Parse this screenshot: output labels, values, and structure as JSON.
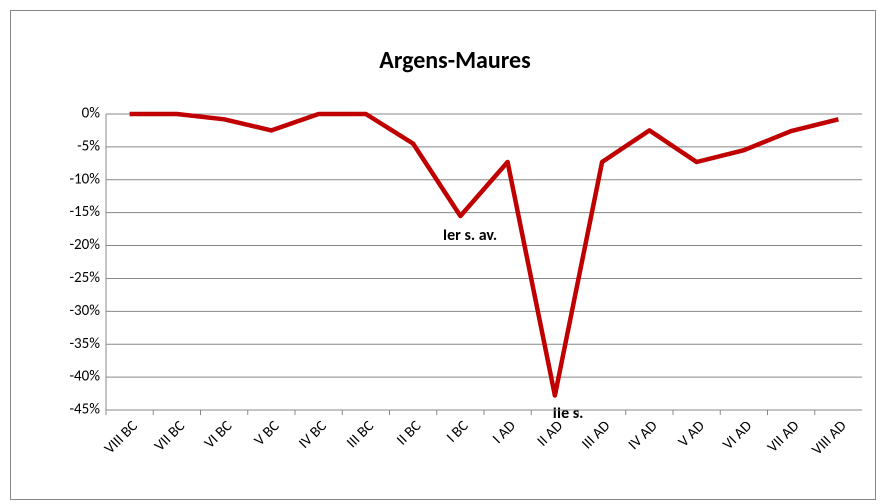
{
  "chart_data": {
    "type": "line",
    "title": "Argens-Maures",
    "categories": [
      "VIII BC",
      "VII BC",
      "VI BC",
      "V BC",
      "IV BC",
      "III BC",
      "II BC",
      "I BC",
      "I AD",
      "II AD",
      "III AD",
      "IV AD",
      "V AD",
      "VI AD",
      "VII AD",
      "VIII AD"
    ],
    "values": [
      0,
      0,
      -0.8,
      -2.5,
      0,
      0,
      -4.5,
      -15.5,
      -7.3,
      -42.8,
      -7.3,
      -2.5,
      -7.3,
      -5.5,
      -2.6,
      -0.8
    ],
    "color": "#c00000",
    "ylim": [
      -45,
      0
    ],
    "yticks": [
      {
        "value": 0,
        "label": "0%"
      },
      {
        "value": -5,
        "label": "-5%"
      },
      {
        "value": -10,
        "label": "-10%"
      },
      {
        "value": -15,
        "label": "-15%"
      },
      {
        "value": -20,
        "label": "-20%"
      },
      {
        "value": -25,
        "label": "-25%"
      },
      {
        "value": -30,
        "label": "-30%"
      },
      {
        "value": -35,
        "label": "-35%"
      },
      {
        "value": -40,
        "label": "-40%"
      },
      {
        "value": -45,
        "label": "-45%"
      }
    ],
    "grid": true,
    "annotations": [
      "Ier s. av.",
      "IIe s."
    ]
  }
}
